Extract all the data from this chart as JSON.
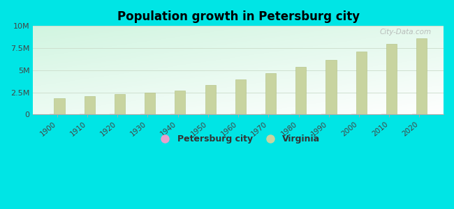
{
  "title": "Population growth in Petersburg city",
  "years": [
    1900,
    1910,
    1920,
    1930,
    1940,
    1950,
    1960,
    1970,
    1980,
    1990,
    2000,
    2010,
    2020
  ],
  "virginia_values": [
    1854184,
    2061612,
    2309187,
    2421851,
    2677773,
    3318680,
    3966949,
    4648494,
    5346818,
    6187358,
    7078515,
    8001024,
    8631393
  ],
  "petersburg_values": [
    21810,
    24127,
    31012,
    18729,
    30631,
    35054,
    36750,
    36103,
    41055,
    38386,
    33740,
    32420,
    33740
  ],
  "bar_color": "#c8d4a0",
  "bar_edge_color": "#b0bf80",
  "petersburg_color": "#e8a0cc",
  "virginia_color": "#c8d4a0",
  "outer_bg": "#00e5e5",
  "ylabel_ticks": [
    "0",
    "2.5M",
    "5M",
    "7.5M",
    "10M"
  ],
  "ylabel_values": [
    0,
    2500000,
    5000000,
    7500000,
    10000000
  ],
  "ylim": [
    0,
    10000000
  ],
  "watermark": "City-Data.com",
  "grid_color": "#ccddcc",
  "spine_color": "#aaaaaa"
}
